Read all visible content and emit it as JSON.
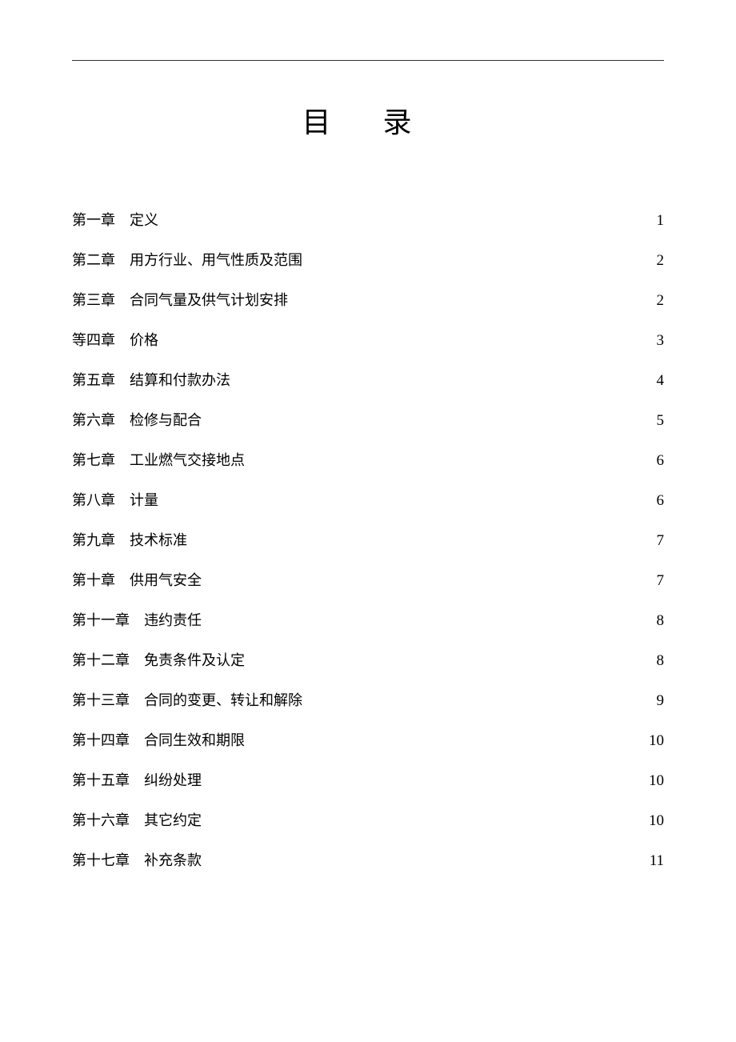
{
  "document": {
    "title": "目 录",
    "title_fontsize": 36,
    "body_fontsize": 18,
    "pagenum_fontsize": 19,
    "text_color": "#000000",
    "background_color": "#ffffff",
    "line_color": "#333333",
    "entry_spacing": 24,
    "chapter_label_gap": 18
  },
  "toc": {
    "entries": [
      {
        "chapter": "第一章",
        "title": "定义",
        "page": "1"
      },
      {
        "chapter": "第二章",
        "title": "用方行业、用气性质及范围",
        "page": "2"
      },
      {
        "chapter": "第三章",
        "title": "合同气量及供气计划安排",
        "page": "2"
      },
      {
        "chapter": "等四章",
        "title": "价格",
        "page": "3"
      },
      {
        "chapter": "第五章",
        "title": "结算和付款办法",
        "page": "4"
      },
      {
        "chapter": "第六章",
        "title": "检修与配合",
        "page": "5"
      },
      {
        "chapter": "第七章",
        "title": "工业燃气交接地点",
        "page": "6"
      },
      {
        "chapter": "第八章",
        "title": "计量",
        "page": "6"
      },
      {
        "chapter": "第九章",
        "title": "技术标准",
        "page": "7"
      },
      {
        "chapter": "第十章",
        "title": "供用气安全",
        "page": "7"
      },
      {
        "chapter": "第十一章",
        "title": "违约责任",
        "page": "8"
      },
      {
        "chapter": "第十二章",
        "title": "免责条件及认定",
        "page": "8"
      },
      {
        "chapter": "第十三章",
        "title": "合同的变更、转让和解除",
        "page": "9"
      },
      {
        "chapter": "第十四章",
        "title": "合同生效和期限",
        "page": "10"
      },
      {
        "chapter": "第十五章",
        "title": "纠纷处理",
        "page": "10"
      },
      {
        "chapter": "第十六章",
        "title": "其它约定",
        "page": "10"
      },
      {
        "chapter": "第十七章",
        "title": "补充条款",
        "page": "11"
      }
    ]
  }
}
